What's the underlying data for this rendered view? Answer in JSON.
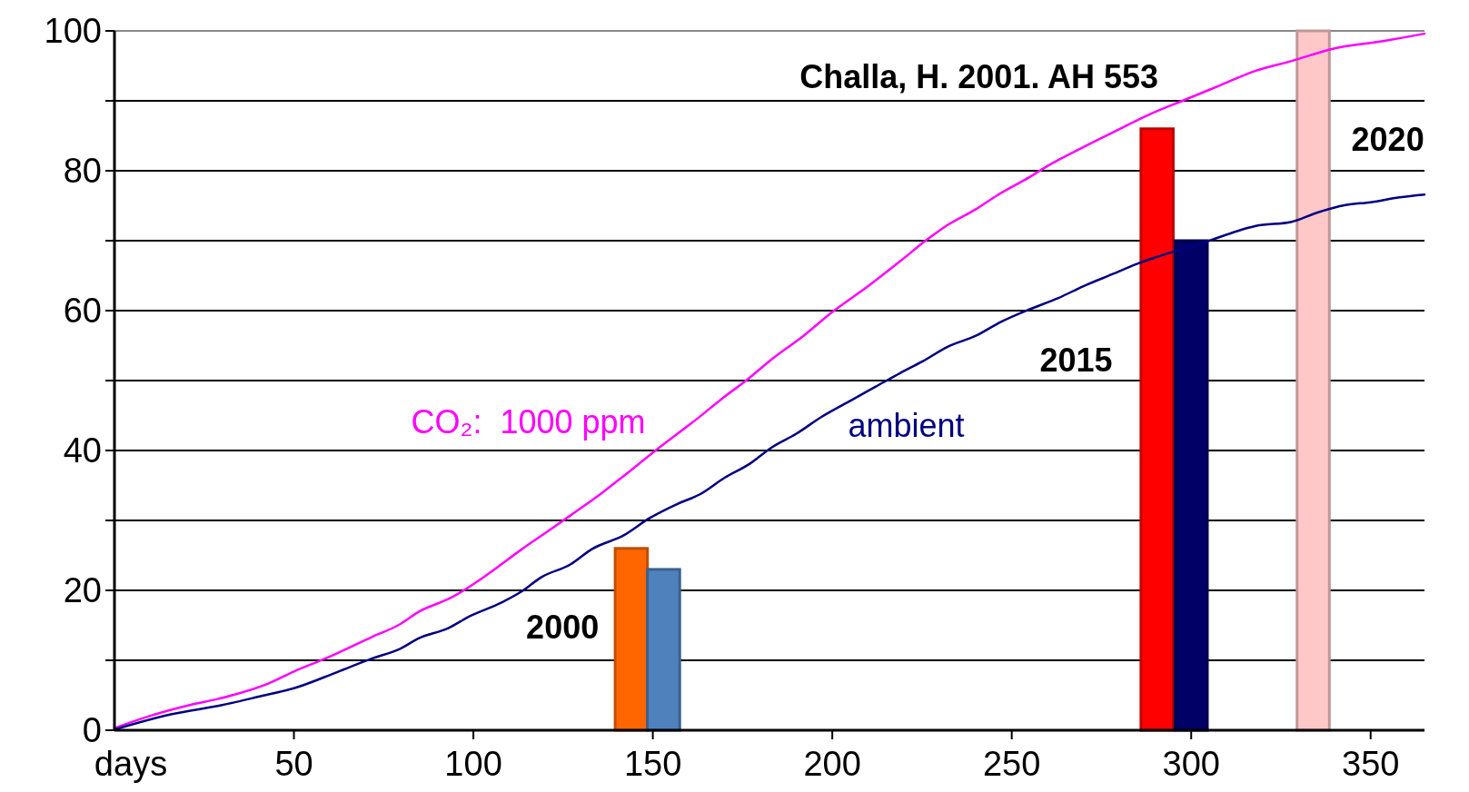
{
  "chart_data": {
    "type": "line",
    "xlabel": "days",
    "xlim": [
      0,
      365
    ],
    "xticks": [
      50,
      100,
      150,
      200,
      250,
      300,
      350
    ],
    "ylim": [
      0,
      100
    ],
    "yticks": [
      0,
      {
        "value": 10,
        "label": null
      },
      20,
      {
        "value": 30,
        "label": null
      },
      40,
      {
        "value": 50,
        "label": null
      },
      60,
      {
        "value": 70,
        "label": null
      },
      80,
      {
        "value": 90,
        "label": null
      },
      100
    ],
    "grid": "y",
    "series": [
      {
        "name": "CO₂:  1000 ppm",
        "color": "#ff00ff",
        "x": [
          0,
          9,
          21,
          29,
          43,
          50,
          59,
          72,
          79,
          85,
          94,
          104,
          113,
          122,
          127,
          136,
          142,
          151,
          162,
          170,
          176,
          183,
          192,
          200,
          210,
          219,
          226,
          232,
          240,
          246,
          255,
          260,
          270,
          279,
          289,
          298,
          308,
          318,
          328,
          340,
          353,
          365
        ],
        "values": [
          0.3,
          1.9,
          3.6,
          4.5,
          6.7,
          8.4,
          10.3,
          13.4,
          15,
          17,
          19,
          22.3,
          25.7,
          28.9,
          30.7,
          34,
          36.4,
          40.1,
          44.4,
          47.7,
          50,
          53,
          56.4,
          59.8,
          63.5,
          67.1,
          70,
          72.2,
          74.5,
          76.5,
          79.1,
          80.7,
          83.4,
          85.7,
          88.2,
          90.1,
          92.2,
          94.3,
          95.7,
          97.5,
          98.5,
          99.6
        ]
      },
      {
        "name": "ambient",
        "color": "#000080",
        "x": [
          0,
          16,
          30,
          41,
          50,
          62,
          72,
          79,
          85,
          93,
          99,
          108,
          113,
          119,
          127,
          133,
          142,
          149,
          157,
          163,
          170,
          177,
          183,
          190,
          197,
          205,
          212,
          219,
          225,
          232,
          240,
          247,
          255,
          263,
          270,
          278,
          285,
          298,
          305,
          313,
          318,
          328,
          335,
          343,
          350,
          358,
          365
        ],
        "values": [
          0.1,
          2.3,
          3.6,
          4.9,
          6,
          8.3,
          10.3,
          11.5,
          13.2,
          14.6,
          16.3,
          18.3,
          19.7,
          21.9,
          23.7,
          25.9,
          27.9,
          30.3,
          32.4,
          33.7,
          36.1,
          38.1,
          40.4,
          42.4,
          44.8,
          47.1,
          49.1,
          51.1,
          52.7,
          54.8,
          56.4,
          58.4,
          60.2,
          61.8,
          63.5,
          65.2,
          66.7,
          68.9,
          70,
          71.4,
          72.1,
          72.7,
          74,
          75.1,
          75.5,
          76.2,
          76.6
        ]
      },
      {
        "type": "bar",
        "x": [
          144,
          153,
          290.5,
          300,
          334
        ],
        "values": [
          26,
          23,
          86,
          70,
          100
        ],
        "colors": [
          "#ff6600",
          "#4f81bd",
          "#ff0000",
          "#000066",
          "#ffc8c8"
        ]
      }
    ],
    "annotations": [
      "Challa, H. 2001. AH 553",
      "2000",
      "2015",
      "2020"
    ]
  }
}
